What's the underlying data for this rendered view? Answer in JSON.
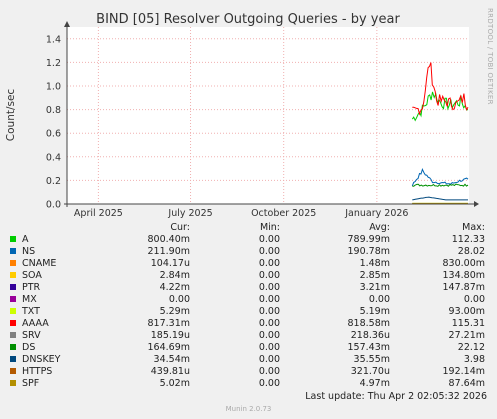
{
  "chart_data": {
    "type": "line",
    "title": "BIND [05] Resolver Outgoing Queries - by year",
    "ylabel": "Count/sec",
    "xlabel": "",
    "ylim": [
      0,
      1.5
    ],
    "yticks": [
      "0.0",
      "0.2",
      "0.4",
      "0.6",
      "0.8",
      "1.0",
      "1.2",
      "1.4"
    ],
    "ytick_values": [
      0,
      0.2,
      0.4,
      0.6,
      0.8,
      1.0,
      1.2,
      1.4
    ],
    "xticks": [
      "April 2025",
      "July 2025",
      "October 2025",
      "January 2026"
    ],
    "xtick_dates": [
      "2025-04-01",
      "2025-07-01",
      "2025-10-01",
      "2026-01-01"
    ],
    "xrange": [
      "2025-03-01",
      "2026-04-02"
    ],
    "grid": true,
    "series": [
      {
        "name": "A",
        "color": "#00cc00",
        "values": [
          [
            "2026-02-05",
            0.72
          ],
          [
            "2026-02-15",
            0.8
          ],
          [
            "2026-02-25",
            0.95
          ],
          [
            "2026-03-05",
            0.86
          ],
          [
            "2026-03-15",
            0.84
          ],
          [
            "2026-03-25",
            0.87
          ],
          [
            "2026-04-01",
            0.8
          ]
        ]
      },
      {
        "name": "NS",
        "color": "#0066b3",
        "values": [
          [
            "2026-02-05",
            0.16
          ],
          [
            "2026-02-15",
            0.28
          ],
          [
            "2026-02-25",
            0.19
          ],
          [
            "2026-03-05",
            0.18
          ],
          [
            "2026-03-15",
            0.17
          ],
          [
            "2026-03-25",
            0.2
          ],
          [
            "2026-04-01",
            0.21
          ]
        ]
      },
      {
        "name": "CNAME",
        "color": "#ff8000",
        "values": [
          [
            "2026-02-05",
            0.0
          ],
          [
            "2026-04-01",
            0.0
          ]
        ]
      },
      {
        "name": "SOA",
        "color": "#ffcc00",
        "values": [
          [
            "2026-02-05",
            0.003
          ],
          [
            "2026-04-01",
            0.003
          ]
        ]
      },
      {
        "name": "PTR",
        "color": "#330099",
        "values": [
          [
            "2026-02-05",
            0.004
          ],
          [
            "2026-04-01",
            0.004
          ]
        ]
      },
      {
        "name": "MX",
        "color": "#990099",
        "values": [
          [
            "2026-02-05",
            0.0
          ],
          [
            "2026-04-01",
            0.0
          ]
        ]
      },
      {
        "name": "TXT",
        "color": "#ccff00",
        "values": [
          [
            "2026-02-05",
            0.005
          ],
          [
            "2026-04-01",
            0.005
          ]
        ]
      },
      {
        "name": "AAAA",
        "color": "#ff0000",
        "values": [
          [
            "2026-02-05",
            0.78
          ],
          [
            "2026-02-15",
            0.82
          ],
          [
            "2026-02-22",
            1.2
          ],
          [
            "2026-03-01",
            0.88
          ],
          [
            "2026-03-10",
            0.87
          ],
          [
            "2026-03-20",
            0.84
          ],
          [
            "2026-03-28",
            0.9
          ],
          [
            "2026-04-01",
            0.82
          ]
        ]
      },
      {
        "name": "SRV",
        "color": "#808080",
        "values": [
          [
            "2026-02-05",
            0.0002
          ],
          [
            "2026-04-01",
            0.0002
          ]
        ]
      },
      {
        "name": "DS",
        "color": "#008f00",
        "values": [
          [
            "2026-02-05",
            0.16
          ],
          [
            "2026-04-01",
            0.16
          ]
        ]
      },
      {
        "name": "DNSKEY",
        "color": "#00487d",
        "values": [
          [
            "2026-02-05",
            0.035
          ],
          [
            "2026-02-20",
            0.06
          ],
          [
            "2026-03-10",
            0.035
          ],
          [
            "2026-04-01",
            0.035
          ]
        ]
      },
      {
        "name": "HTTPS",
        "color": "#b35a00",
        "values": [
          [
            "2026-02-05",
            0.0004
          ],
          [
            "2026-04-01",
            0.0004
          ]
        ]
      },
      {
        "name": "SPF",
        "color": "#b38f00",
        "values": [
          [
            "2026-02-05",
            0.005
          ],
          [
            "2026-04-01",
            0.005
          ]
        ]
      }
    ]
  },
  "legend": {
    "headers": [
      "Cur:",
      "Min:",
      "Avg:",
      "Max:"
    ],
    "rows": [
      {
        "name": "A",
        "color": "#00cc00",
        "cur": "800.40m",
        "min": "0.00",
        "avg": "789.99m",
        "max": "112.33"
      },
      {
        "name": "NS",
        "color": "#0066b3",
        "cur": "211.90m",
        "min": "0.00",
        "avg": "190.78m",
        "max": "28.02"
      },
      {
        "name": "CNAME",
        "color": "#ff8000",
        "cur": "104.17u",
        "min": "0.00",
        "avg": "1.48m",
        "max": "830.00m"
      },
      {
        "name": "SOA",
        "color": "#ffcc00",
        "cur": "2.84m",
        "min": "0.00",
        "avg": "2.85m",
        "max": "134.80m"
      },
      {
        "name": "PTR",
        "color": "#330099",
        "cur": "4.22m",
        "min": "0.00",
        "avg": "3.21m",
        "max": "147.87m"
      },
      {
        "name": "MX",
        "color": "#990099",
        "cur": "0.00",
        "min": "0.00",
        "avg": "0.00",
        "max": "0.00"
      },
      {
        "name": "TXT",
        "color": "#ccff00",
        "cur": "5.29m",
        "min": "0.00",
        "avg": "5.19m",
        "max": "93.00m"
      },
      {
        "name": "AAAA",
        "color": "#ff0000",
        "cur": "817.31m",
        "min": "0.00",
        "avg": "818.58m",
        "max": "115.31"
      },
      {
        "name": "SRV",
        "color": "#808080",
        "cur": "185.19u",
        "min": "0.00",
        "avg": "218.36u",
        "max": "27.21m"
      },
      {
        "name": "DS",
        "color": "#008f00",
        "cur": "164.69m",
        "min": "0.00",
        "avg": "157.43m",
        "max": "22.12"
      },
      {
        "name": "DNSKEY",
        "color": "#00487d",
        "cur": "34.54m",
        "min": "0.00",
        "avg": "35.55m",
        "max": "3.98"
      },
      {
        "name": "HTTPS",
        "color": "#b35a00",
        "cur": "439.81u",
        "min": "0.00",
        "avg": "321.70u",
        "max": "192.14m"
      },
      {
        "name": "SPF",
        "color": "#b38f00",
        "cur": "5.02m",
        "min": "0.00",
        "avg": "4.97m",
        "max": "87.64m"
      }
    ]
  },
  "last_update": "Last update: Thu Apr  2 02:05:32 2026",
  "munin_version": "Munin 2.0.73",
  "side_label": "RRDTOOL / TOBI OETIKER"
}
